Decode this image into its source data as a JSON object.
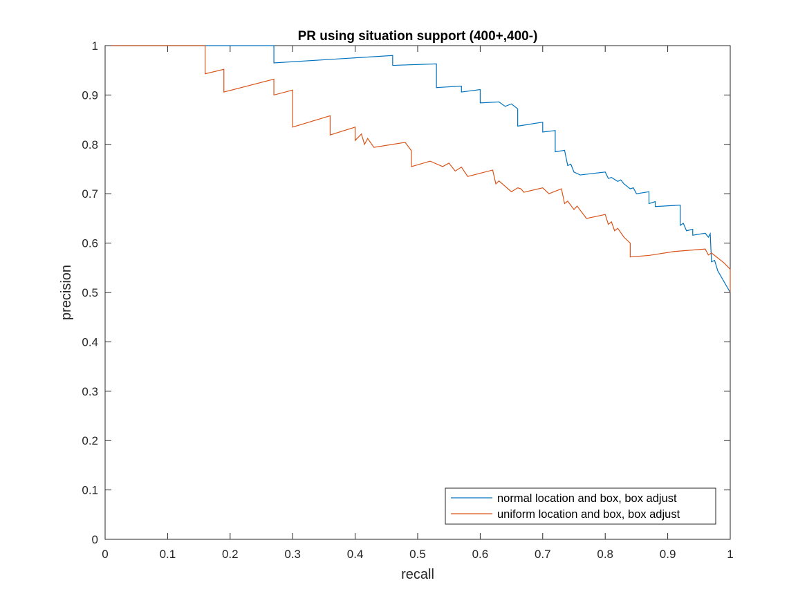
{
  "chart_data": {
    "type": "line",
    "title": "PR using situation support (400+,400-)",
    "xlabel": "recall",
    "ylabel": "precision",
    "xlim": [
      0,
      1
    ],
    "ylim": [
      0,
      1
    ],
    "xticks": [
      0,
      0.1,
      0.2,
      0.3,
      0.4,
      0.5,
      0.6,
      0.7,
      0.8,
      0.9,
      1
    ],
    "xtick_labels": [
      "0",
      "0.1",
      "0.2",
      "0.3",
      "0.4",
      "0.5",
      "0.6",
      "0.7",
      "0.8",
      "0.9",
      "1"
    ],
    "yticks": [
      0,
      0.1,
      0.2,
      0.3,
      0.4,
      0.5,
      0.6,
      0.7,
      0.8,
      0.9,
      1
    ],
    "ytick_labels": [
      "0",
      "0.1",
      "0.2",
      "0.3",
      "0.4",
      "0.5",
      "0.6",
      "0.7",
      "0.8",
      "0.9",
      "1"
    ],
    "grid": false,
    "legend_position": "bottom-right",
    "series": [
      {
        "name": "normal location and box, box adjust",
        "color": "#0072BD",
        "x": [
          0.01,
          0.27,
          0.27,
          0.46,
          0.46,
          0.53,
          0.53,
          0.57,
          0.57,
          0.6,
          0.6,
          0.63,
          0.64,
          0.65,
          0.66,
          0.66,
          0.7,
          0.7,
          0.72,
          0.72,
          0.735,
          0.74,
          0.745,
          0.75,
          0.76,
          0.8,
          0.805,
          0.81,
          0.82,
          0.825,
          0.83,
          0.84,
          0.845,
          0.85,
          0.87,
          0.87,
          0.88,
          0.88,
          0.92,
          0.92,
          0.925,
          0.93,
          0.94,
          0.94,
          0.96,
          0.965,
          0.968,
          0.97,
          0.975,
          0.98,
          1.0
        ],
        "y": [
          1.0,
          1.0,
          0.965,
          0.98,
          0.96,
          0.963,
          0.915,
          0.918,
          0.906,
          0.911,
          0.884,
          0.886,
          0.877,
          0.882,
          0.872,
          0.837,
          0.845,
          0.825,
          0.828,
          0.785,
          0.788,
          0.757,
          0.76,
          0.744,
          0.738,
          0.744,
          0.731,
          0.733,
          0.725,
          0.728,
          0.72,
          0.71,
          0.712,
          0.7,
          0.704,
          0.68,
          0.684,
          0.674,
          0.677,
          0.636,
          0.64,
          0.625,
          0.628,
          0.616,
          0.62,
          0.612,
          0.619,
          0.562,
          0.565,
          0.544,
          0.5
        ]
      },
      {
        "name": "uniform location and box, box adjust",
        "color": "#D95319",
        "x": [
          0.01,
          0.16,
          0.16,
          0.19,
          0.19,
          0.27,
          0.27,
          0.3,
          0.3,
          0.36,
          0.36,
          0.4,
          0.4,
          0.41,
          0.415,
          0.42,
          0.43,
          0.48,
          0.49,
          0.49,
          0.52,
          0.54,
          0.55,
          0.56,
          0.57,
          0.58,
          0.62,
          0.625,
          0.63,
          0.65,
          0.66,
          0.665,
          0.67,
          0.7,
          0.71,
          0.73,
          0.735,
          0.74,
          0.75,
          0.755,
          0.77,
          0.8,
          0.805,
          0.81,
          0.815,
          0.82,
          0.83,
          0.84,
          0.84,
          0.87,
          0.91,
          0.96,
          0.965,
          0.97,
          0.98,
          0.99,
          1.0,
          1.0
        ],
        "y": [
          1.0,
          1.0,
          0.943,
          0.952,
          0.906,
          0.932,
          0.9,
          0.91,
          0.835,
          0.858,
          0.819,
          0.835,
          0.808,
          0.821,
          0.8,
          0.812,
          0.794,
          0.804,
          0.787,
          0.755,
          0.766,
          0.755,
          0.762,
          0.746,
          0.754,
          0.735,
          0.748,
          0.72,
          0.726,
          0.704,
          0.712,
          0.71,
          0.703,
          0.712,
          0.7,
          0.71,
          0.68,
          0.685,
          0.668,
          0.675,
          0.65,
          0.658,
          0.638,
          0.643,
          0.625,
          0.63,
          0.612,
          0.6,
          0.572,
          0.575,
          0.583,
          0.588,
          0.576,
          0.58,
          0.57,
          0.56,
          0.547,
          0.5
        ]
      }
    ]
  }
}
